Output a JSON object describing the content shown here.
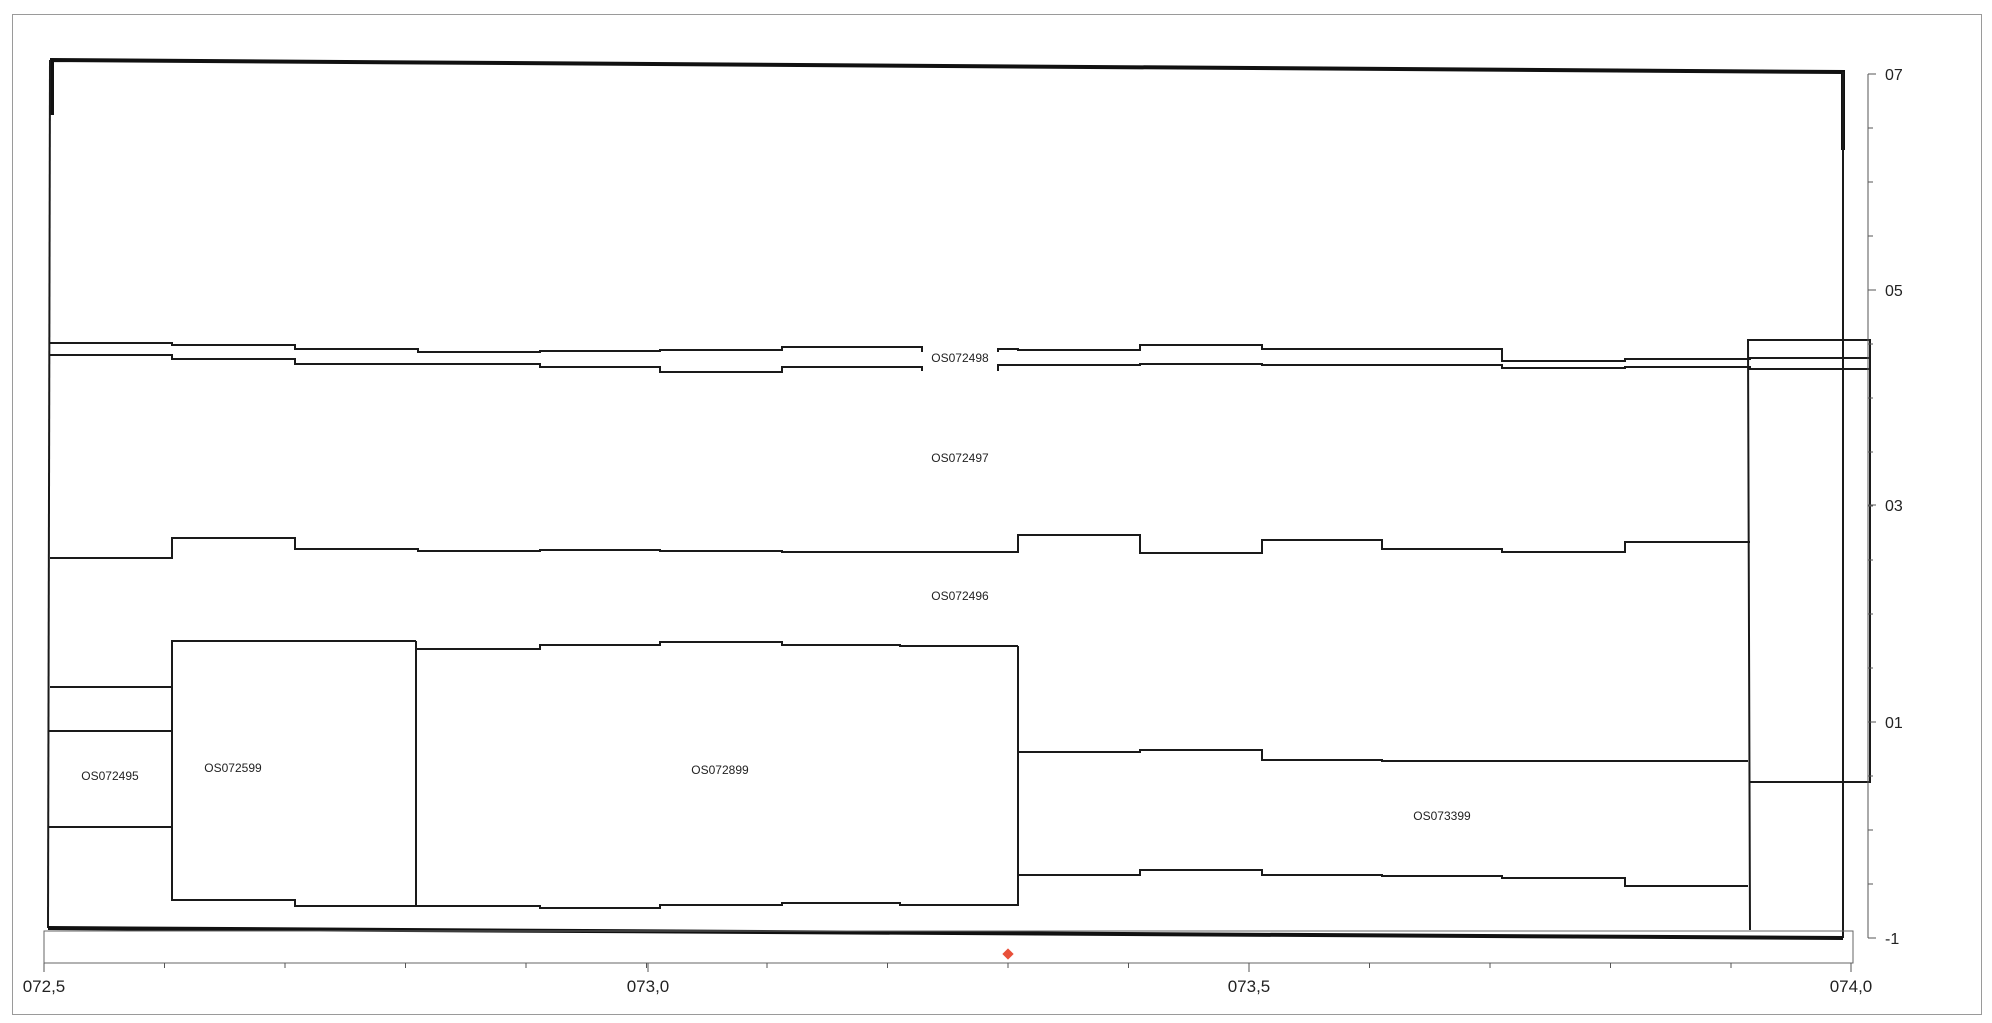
{
  "regions": [
    {
      "id": "r498",
      "label": "OS072498"
    },
    {
      "id": "r497",
      "label": "OS072497"
    },
    {
      "id": "r496",
      "label": "OS072496"
    },
    {
      "id": "r495",
      "label": "OS072495"
    },
    {
      "id": "r599",
      "label": "OS072599"
    },
    {
      "id": "r899",
      "label": "OS072899"
    },
    {
      "id": "r399",
      "label": "OS073399"
    }
  ],
  "y_axis": {
    "ticks": [
      "07",
      "05",
      "03",
      "01",
      "-1"
    ]
  },
  "x_axis": {
    "ticks": [
      "072,5",
      "073,0",
      "073,5",
      "074,0"
    ]
  },
  "marker": {
    "color": "#e8503a"
  }
}
